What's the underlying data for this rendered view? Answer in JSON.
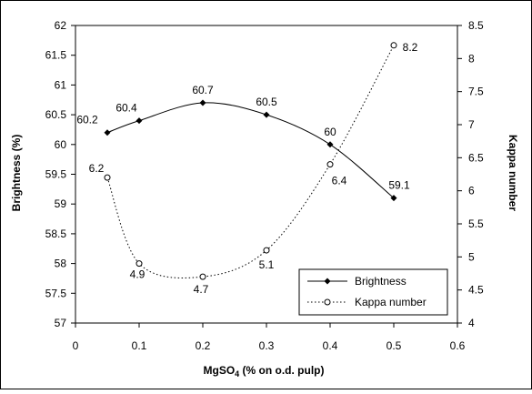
{
  "chart_data": {
    "type": "line",
    "title": "",
    "x": [
      0.05,
      0.1,
      0.2,
      0.3,
      0.4,
      0.5
    ],
    "xlabel_parts": [
      "MgSO",
      "4",
      " (%  on o.d. pulp)"
    ],
    "ylabel_left": "Brightness (%)",
    "ylabel_right": "Kappa number",
    "xlim": [
      0,
      0.6
    ],
    "xticks": [
      "0",
      "0.1",
      "0.2",
      "0.3",
      "0.4",
      "0.5",
      "0.6"
    ],
    "ylim_left": [
      57,
      62
    ],
    "yticks_left": [
      "57",
      "57.5",
      "58",
      "58.5",
      "59",
      "59.5",
      "60",
      "60.5",
      "61",
      "61.5",
      "62"
    ],
    "ylim_right": [
      4,
      8.5
    ],
    "yticks_right": [
      "4",
      "4.5",
      "5",
      "5.5",
      "6",
      "6.5",
      "7",
      "7.5",
      "8",
      "8.5"
    ],
    "grid": false,
    "legend_position": "bottom-right",
    "series": [
      {
        "name": "Brightness",
        "axis": "left",
        "line_style": "solid",
        "marker": "filled-diamond",
        "values": [
          60.2,
          60.4,
          60.7,
          60.5,
          60.0,
          59.1
        ],
        "labels": [
          "60.2",
          "60.4",
          "60.7",
          "60.5",
          "60",
          "59.1"
        ]
      },
      {
        "name": "Kappa number",
        "axis": "right",
        "line_style": "dotted",
        "marker": "open-circle",
        "values": [
          6.2,
          4.9,
          4.7,
          5.1,
          6.4,
          8.2
        ],
        "labels": [
          "6.2",
          "4.9",
          "4.7",
          "5.1",
          "6.4",
          "8.2"
        ]
      }
    ]
  }
}
